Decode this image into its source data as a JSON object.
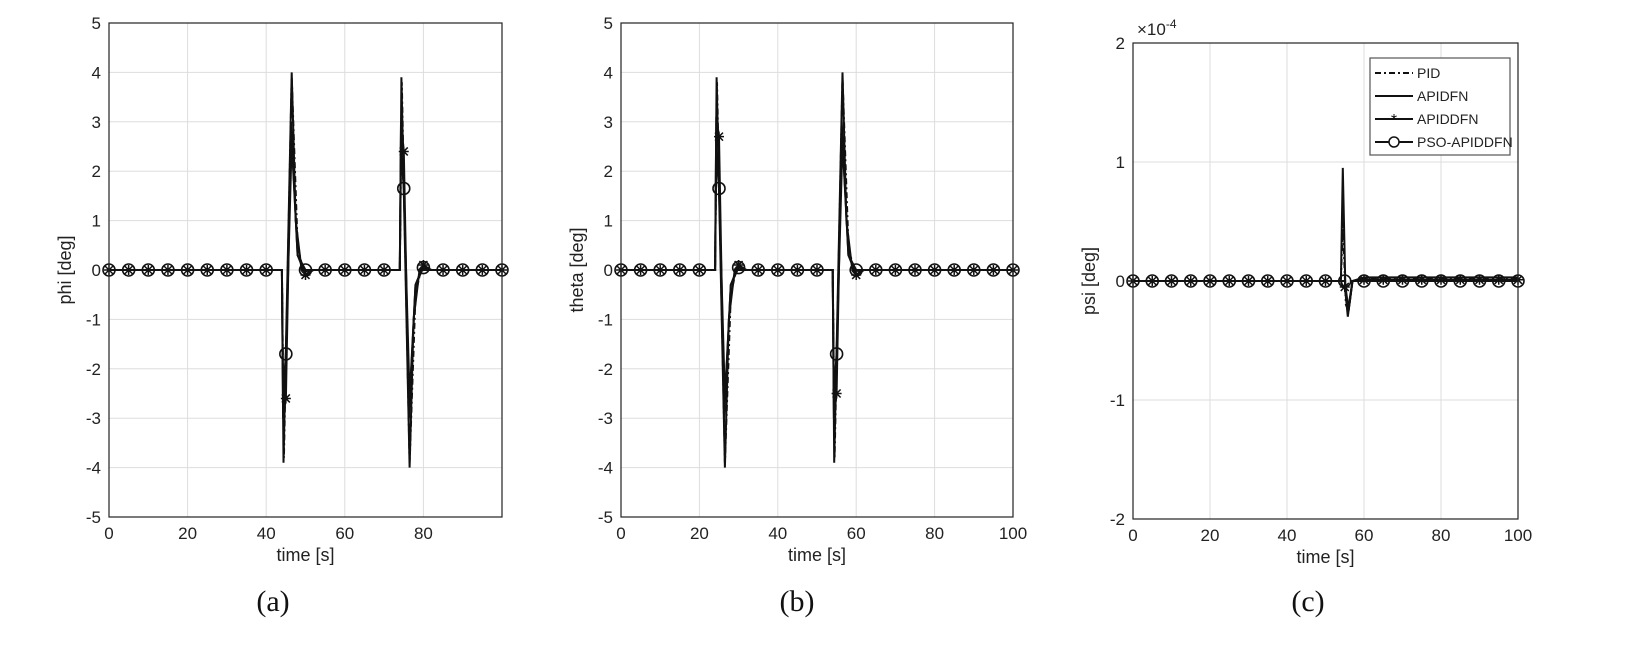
{
  "chart_data": [
    {
      "id": "a",
      "type": "line",
      "caption": "(a)",
      "xlabel": "time [s]",
      "ylabel": "phi [deg]",
      "xlim": [
        0,
        100
      ],
      "ylim": [
        -5,
        5
      ],
      "xticks": [
        0,
        20,
        40,
        60,
        80
      ],
      "yticks": [
        -5,
        -4,
        -3,
        -2,
        -1,
        0,
        1,
        2,
        3,
        4,
        5
      ],
      "grid": true,
      "exponent": "",
      "series": [
        {
          "name": "PID",
          "style": "dashdot",
          "points": [
            [
              0,
              0
            ],
            [
              44,
              0
            ],
            [
              44.5,
              -3.8
            ],
            [
              46.5,
              3.9
            ],
            [
              48,
              0.5
            ],
            [
              49.5,
              -0.05
            ],
            [
              51,
              0
            ],
            [
              74,
              0
            ],
            [
              74.5,
              3.8
            ],
            [
              76.5,
              -3.9
            ],
            [
              78,
              -0.5
            ],
            [
              79.5,
              0.05
            ],
            [
              81,
              0
            ],
            [
              100,
              0
            ]
          ]
        },
        {
          "name": "APIDFN",
          "style": "solid",
          "points": [
            [
              0,
              0
            ],
            [
              44,
              0
            ],
            [
              44.4,
              -3.9
            ],
            [
              46.5,
              4.0
            ],
            [
              47.5,
              1.0
            ],
            [
              49,
              0
            ],
            [
              74,
              0
            ],
            [
              74.4,
              3.9
            ],
            [
              76.5,
              -4.0
            ],
            [
              77.5,
              -1.0
            ],
            [
              79,
              0
            ],
            [
              100,
              0
            ]
          ]
        },
        {
          "name": "APIDDFN",
          "style": "star",
          "points": [
            [
              0,
              0
            ],
            [
              44,
              0
            ],
            [
              44.3,
              -3.0
            ],
            [
              45,
              -2.6
            ],
            [
              46.3,
              3.0
            ],
            [
              48,
              0.3
            ],
            [
              50,
              -0.1
            ],
            [
              52,
              0
            ],
            [
              74,
              0
            ],
            [
              74.3,
              3.0
            ],
            [
              75,
              2.4
            ],
            [
              76.3,
              -3.0
            ],
            [
              78,
              -0.3
            ],
            [
              80,
              0.1
            ],
            [
              82,
              0
            ],
            [
              100,
              0
            ]
          ]
        },
        {
          "name": "PSO-APIDDFN",
          "style": "circle",
          "points": [
            [
              0,
              0
            ],
            [
              44,
              0
            ],
            [
              44.3,
              -2.5
            ],
            [
              45,
              -1.7
            ],
            [
              46.5,
              2.6
            ],
            [
              48,
              0.3
            ],
            [
              50,
              0
            ],
            [
              74,
              0
            ],
            [
              74.3,
              2.4
            ],
            [
              75,
              1.65
            ],
            [
              76.5,
              -2.6
            ],
            [
              78,
              -0.3
            ],
            [
              80,
              0.05
            ],
            [
              82,
              0
            ],
            [
              100,
              0
            ]
          ]
        }
      ]
    },
    {
      "id": "b",
      "type": "line",
      "caption": "(b)",
      "xlabel": "time [s]",
      "ylabel": "theta [deg]",
      "xlim": [
        0,
        100
      ],
      "ylim": [
        -5,
        5
      ],
      "xticks": [
        0,
        20,
        40,
        60,
        80,
        100
      ],
      "yticks": [
        -5,
        -4,
        -3,
        -2,
        -1,
        0,
        1,
        2,
        3,
        4,
        5
      ],
      "grid": true,
      "exponent": "",
      "series": [
        {
          "name": "PID",
          "style": "dashdot",
          "points": [
            [
              0,
              0
            ],
            [
              24,
              0
            ],
            [
              24.5,
              3.8
            ],
            [
              26.5,
              -3.9
            ],
            [
              28,
              -0.5
            ],
            [
              29.5,
              0.05
            ],
            [
              31,
              0
            ],
            [
              54,
              0
            ],
            [
              54.5,
              -3.8
            ],
            [
              56.5,
              3.9
            ],
            [
              58,
              0.5
            ],
            [
              59.5,
              -0.05
            ],
            [
              61,
              0
            ],
            [
              100,
              0
            ]
          ]
        },
        {
          "name": "APIDFN",
          "style": "solid",
          "points": [
            [
              0,
              0
            ],
            [
              24,
              0
            ],
            [
              24.4,
              3.9
            ],
            [
              26.5,
              -4.0
            ],
            [
              27.5,
              -1.0
            ],
            [
              29,
              0
            ],
            [
              54,
              0
            ],
            [
              54.4,
              -3.9
            ],
            [
              56.5,
              4.0
            ],
            [
              57.5,
              1.0
            ],
            [
              59,
              0
            ],
            [
              100,
              0
            ]
          ]
        },
        {
          "name": "APIDDFN",
          "style": "star",
          "points": [
            [
              0,
              0
            ],
            [
              24,
              0
            ],
            [
              24.3,
              3.1
            ],
            [
              25,
              2.7
            ],
            [
              26.3,
              -3.0
            ],
            [
              28,
              -0.3
            ],
            [
              30,
              0.1
            ],
            [
              32,
              0
            ],
            [
              54,
              0
            ],
            [
              54.3,
              -3.0
            ],
            [
              55,
              -2.5
            ],
            [
              56.3,
              3.0
            ],
            [
              58,
              0.3
            ],
            [
              60,
              -0.1
            ],
            [
              62,
              0
            ],
            [
              100,
              0
            ]
          ]
        },
        {
          "name": "PSO-APIDDFN",
          "style": "circle",
          "points": [
            [
              0,
              0
            ],
            [
              24,
              0
            ],
            [
              24.3,
              2.4
            ],
            [
              25,
              1.65
            ],
            [
              26.5,
              -2.6
            ],
            [
              28,
              -0.3
            ],
            [
              30,
              0.05
            ],
            [
              32,
              0
            ],
            [
              54,
              0
            ],
            [
              54.3,
              -2.5
            ],
            [
              55,
              -1.7
            ],
            [
              56.5,
              2.6
            ],
            [
              58,
              0.3
            ],
            [
              60,
              0
            ],
            [
              100,
              0
            ]
          ]
        }
      ]
    },
    {
      "id": "c",
      "type": "line",
      "caption": "(c)",
      "xlabel": "time [s]",
      "ylabel": "psi [deg]",
      "xlim": [
        0,
        100
      ],
      "ylim": [
        -2,
        2
      ],
      "xticks": [
        0,
        20,
        40,
        60,
        80,
        100
      ],
      "yticks": [
        -2,
        -1,
        0,
        1,
        2
      ],
      "grid": true,
      "exponent": "×10^-4",
      "exp_base": "×10",
      "exp_power": "-4",
      "legend": {
        "placement": "top-right",
        "entries": [
          "PID",
          "APIDFN",
          "APIDDFN",
          "PSO-APIDDFN"
        ]
      },
      "series": [
        {
          "name": "PID",
          "style": "dashdot",
          "points": [
            [
              0,
              0
            ],
            [
              54,
              0
            ],
            [
              54.5,
              0.5
            ],
            [
              55.3,
              -0.2
            ],
            [
              56,
              -0.25
            ],
            [
              57,
              0
            ],
            [
              60,
              0.02
            ],
            [
              100,
              0.02
            ]
          ]
        },
        {
          "name": "APIDFN",
          "style": "solid",
          "points": [
            [
              0,
              0
            ],
            [
              54,
              0
            ],
            [
              54.5,
              0.95
            ],
            [
              55.2,
              -0.1
            ],
            [
              55.8,
              -0.3
            ],
            [
              57,
              0
            ],
            [
              60,
              0.03
            ],
            [
              100,
              0.03
            ]
          ]
        },
        {
          "name": "APIDDFN",
          "style": "star",
          "points": [
            [
              0,
              0
            ],
            [
              54,
              0
            ],
            [
              54.5,
              -0.05
            ],
            [
              55,
              -0.05
            ],
            [
              55.8,
              -0.25
            ],
            [
              57,
              0
            ],
            [
              60,
              0.01
            ],
            [
              100,
              0.01
            ]
          ]
        },
        {
          "name": "PSO-APIDDFN",
          "style": "circle",
          "points": [
            [
              0,
              0
            ],
            [
              54,
              0
            ],
            [
              55,
              0
            ],
            [
              56,
              -0.25
            ],
            [
              57,
              0
            ],
            [
              100,
              0
            ]
          ]
        }
      ]
    }
  ]
}
